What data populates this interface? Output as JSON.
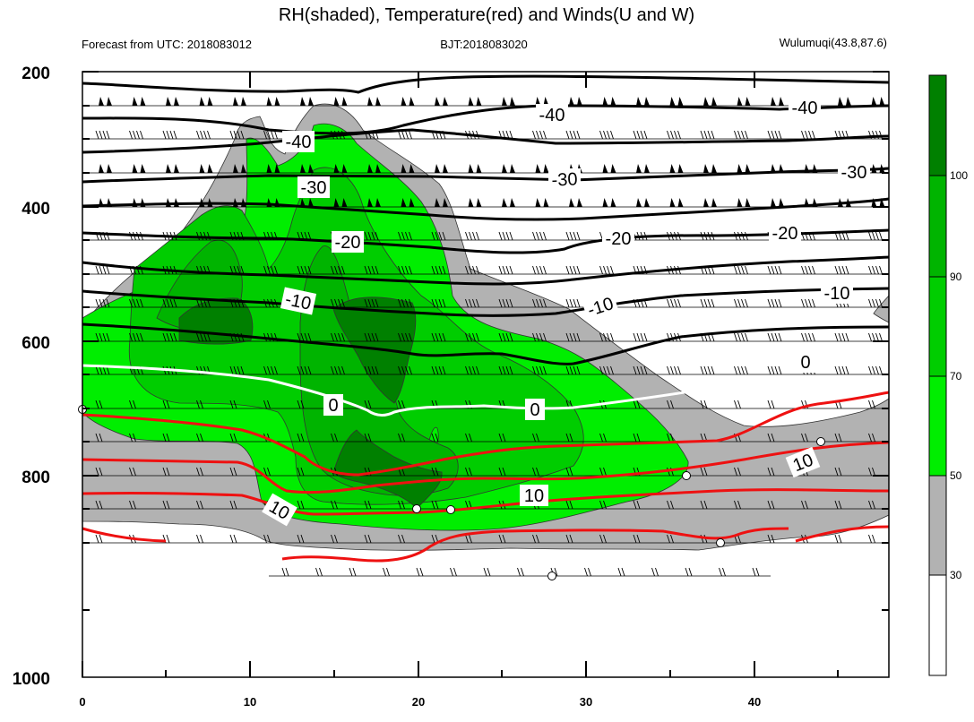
{
  "chart_data": {
    "type": "contour-cross-section",
    "title": "RH(shaded), Temperature(red) and Winds(U and W)",
    "subtitle_left": "Forecast from UTC: 2018083012",
    "subtitle_center": "BJT:2018083020",
    "subtitle_right": "Wulumuqi(43.8,87.6)",
    "x_ticks": [
      "0",
      "10",
      "20",
      "30",
      "40"
    ],
    "y_ticks": [
      "200",
      "400",
      "600",
      "800",
      "1000"
    ],
    "xlim": [
      0,
      48
    ],
    "ylim": [
      200,
      1000
    ],
    "colorbar": {
      "ticks": [
        "30",
        "50",
        "70",
        "90",
        "100"
      ],
      "colors": [
        "#ffffff",
        "#b2b2b2",
        "#00ee00",
        "#00cd00",
        "#00b400",
        "#009a00",
        "#008000"
      ]
    },
    "temperature_labels": [
      "-40",
      "-40",
      "-40",
      "-30",
      "-30",
      "-30",
      "-20",
      "-20",
      "-20",
      "-10",
      "-10",
      "-10",
      "0",
      "0",
      "0",
      "10",
      "10",
      "10"
    ],
    "colors": {
      "cold_isotherm": "#000000",
      "zero_isotherm": "#ffffff",
      "warm_isotherm": "#ee1111",
      "rh_low": "#b2b2b2",
      "rh_high": "#008000"
    }
  }
}
